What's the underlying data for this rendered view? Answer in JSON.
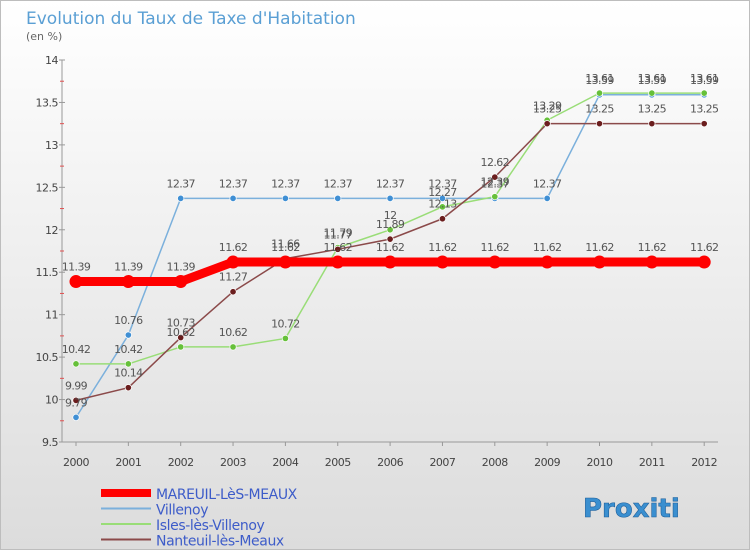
{
  "title": "Evolution du Taux de Taxe d'Habitation",
  "subtitle": "(en %)",
  "logo_text": "Proxiti",
  "chart_data": {
    "type": "line",
    "title": "Evolution du Taux de Taxe d'Habitation",
    "ylabel": "(en %)",
    "xlabel": "",
    "x": [
      "2000",
      "2001",
      "2002",
      "2003",
      "2004",
      "2005",
      "2006",
      "2007",
      "2008",
      "2009",
      "2010",
      "2011",
      "2012"
    ],
    "ylim": [
      9.5,
      14
    ],
    "yticks": [
      "9.5",
      "10",
      "10.5",
      "11",
      "11.5",
      "12",
      "12.5",
      "13",
      "13.5",
      "14"
    ],
    "grid": false,
    "legend_position": "bottom-left",
    "series": [
      {
        "name": "MAREUIL-LèS-MEAUX",
        "color": "#ff0000",
        "marker_color": "#ff0000",
        "values": [
          11.39,
          11.39,
          11.39,
          11.62,
          11.62,
          11.62,
          11.62,
          11.62,
          11.62,
          11.62,
          11.62,
          11.62,
          11.62
        ],
        "labels": [
          "11.39",
          "11.39",
          "11.39",
          "11.62",
          "11.62",
          "11.62",
          "11.62",
          "11.62",
          "11.62",
          "11.62",
          "11.62",
          "11.62",
          "11.62"
        ]
      },
      {
        "name": "Villenoy",
        "color": "#7bb0dc",
        "marker_color": "#3f8fd4",
        "values": [
          9.79,
          10.76,
          12.37,
          12.37,
          12.37,
          12.37,
          12.37,
          12.37,
          12.37,
          12.37,
          13.59,
          13.59,
          13.59
        ],
        "labels": [
          "9.79",
          "10.76",
          "12.37",
          "12.37",
          "12.37",
          "12.37",
          "12.37",
          "12.37",
          "12.37",
          "12.37",
          "13.59",
          "13.59",
          "13.59"
        ]
      },
      {
        "name": "Isles-lès-Villenoy",
        "color": "#99dd77",
        "marker_color": "#66c03a",
        "values": [
          10.42,
          10.42,
          10.62,
          10.62,
          10.72,
          11.79,
          12,
          12.27,
          12.39,
          13.29,
          13.61,
          13.61,
          13.61
        ],
        "labels": [
          "10.42",
          "10.42",
          "10.62",
          "10.62",
          "10.72",
          "11.79",
          "12",
          "12.27",
          "12.39",
          "13.29",
          "13.61",
          "13.61",
          "13.61"
        ]
      },
      {
        "name": "Nanteuil-lès-Meaux",
        "color": "#8b4a4a",
        "marker_color": "#6b1e1e",
        "values": [
          9.99,
          10.14,
          10.73,
          11.27,
          11.66,
          11.77,
          11.89,
          12.13,
          12.62,
          13.25,
          13.25,
          13.25,
          13.25
        ],
        "labels": [
          "9.99",
          "10.14",
          "10.73",
          "11.27",
          "11.66",
          "11.77",
          "11.89",
          "12.13",
          "12.62",
          "13.25",
          "13.25",
          "13.25",
          "13.25"
        ]
      }
    ]
  }
}
